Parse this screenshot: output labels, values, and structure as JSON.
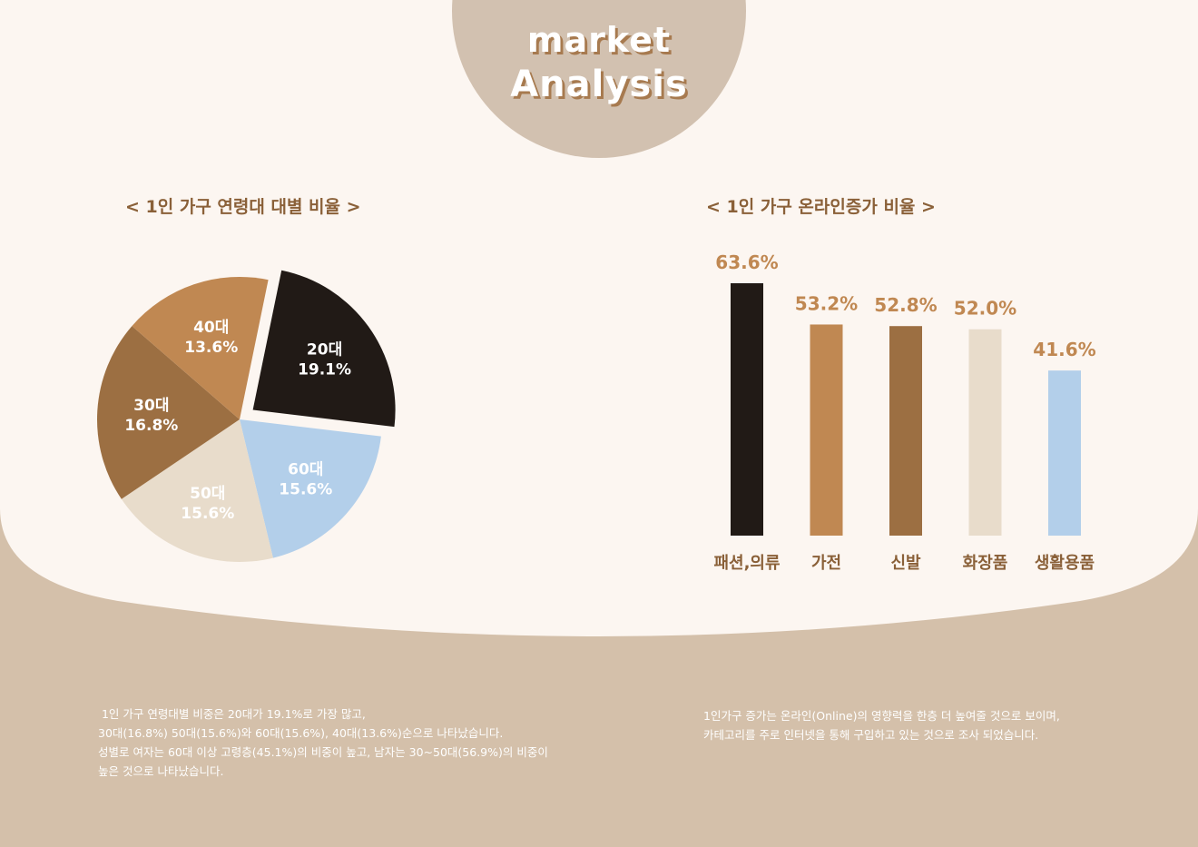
{
  "title": {
    "line1": "market",
    "line2": "Analysis"
  },
  "colors": {
    "background": "#fcf6f1",
    "bottom_band": "#d4c0aa",
    "title_circle": "#d2c1b0",
    "heading_text": "#8a6038",
    "value_label": "#c08852",
    "category_label": "#8a6038"
  },
  "chart_data": [
    {
      "type": "pie",
      "title": "< 1인 가구 연령대 대별 비율 >",
      "slices": [
        {
          "label": "20대",
          "value": 19.1,
          "value_label": "19.1%",
          "color": "#211a16",
          "exploded": true,
          "label_color": "#ffffff"
        },
        {
          "label": "60대",
          "value": 15.6,
          "value_label": "15.6%",
          "color": "#b3cfea",
          "exploded": false,
          "label_color": "#ffffff"
        },
        {
          "label": "50대",
          "value": 15.6,
          "value_label": "15.6%",
          "color": "#e8dccb",
          "exploded": false,
          "label_color": "#ffffff"
        },
        {
          "label": "30대",
          "value": 16.8,
          "value_label": "16.8%",
          "color": "#9c6f42",
          "exploded": false,
          "label_color": "#ffffff"
        },
        {
          "label": "40대",
          "value": 13.6,
          "value_label": "13.6%",
          "color": "#c08852",
          "exploded": false,
          "label_color": "#ffffff"
        }
      ]
    },
    {
      "type": "bar",
      "title": "< 1인 가구 온라인증가 비율 >",
      "categories": [
        "패션,의류",
        "가전",
        "신발",
        "화장품",
        "생활용품"
      ],
      "values": [
        63.6,
        53.2,
        52.8,
        52.0,
        41.6
      ],
      "value_labels": [
        "63.6%",
        "53.2%",
        "52.8%",
        "52.0%",
        "41.6%"
      ],
      "colors": [
        "#211a16",
        "#c08852",
        "#9c6f42",
        "#e8dccb",
        "#b3cfea"
      ],
      "ylim": [
        0,
        63.6
      ]
    }
  ],
  "notes": {
    "left": " 1인 가구 연령대별 비중은 20대가 19.1%로 가장 많고,\n30대(16.8%) 50대(15.6%)와 60대(15.6%), 40대(13.6%)순으로 나타났습니다.\n성별로 여자는 60대 이상 고령층(45.1%)의 비중이 높고, 남자는 30~50대(56.9%)의 비중이\n높은 것으로 나타났습니다.",
    "right": "1인가구 증가는 온라인(Online)의 영향력을 한층 더 높여줄 것으로 보이며,\n카테고리를 주로 인터넷을 통해 구입하고 있는 것으로 조사 되었습니다."
  }
}
